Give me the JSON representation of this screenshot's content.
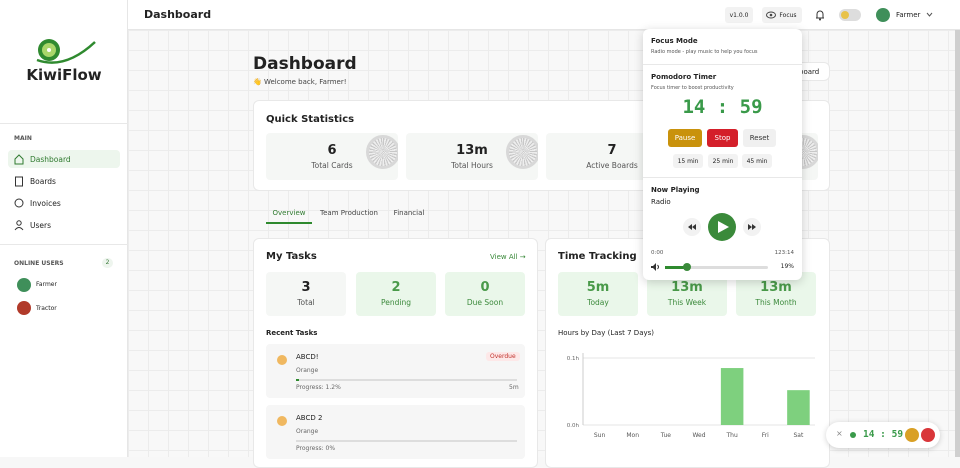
{
  "sidebar": {
    "brand": "KiwiFlow",
    "section_main": "MAIN",
    "nav": [
      "Dashboard",
      "Boards",
      "Invoices",
      "Users"
    ],
    "online_title": "ONLINE USERS",
    "online_count": "2",
    "online_users": [
      "Farmer",
      "Tractor"
    ]
  },
  "topbar": {
    "title": "Dashboard",
    "version": "v1.0.0",
    "focus": "Focus",
    "user": "Farmer"
  },
  "header": {
    "title": "Dashboard",
    "welcome": "👋 Welcome back, Farmer!",
    "button": "board"
  },
  "quick_stats": {
    "title": "Quick Statistics",
    "items": [
      {
        "value": "6",
        "label": "Total Cards"
      },
      {
        "value": "13m",
        "label": "Total Hours"
      },
      {
        "value": "7",
        "label": "Active Boards"
      }
    ]
  },
  "tabs": [
    "Overview",
    "Team Production",
    "Financial"
  ],
  "my_tasks": {
    "title": "My Tasks",
    "view_all": "View All →",
    "stats": [
      {
        "value": "3",
        "label": "Total"
      },
      {
        "value": "2",
        "label": "Pending"
      },
      {
        "value": "0",
        "label": "Due Soon"
      }
    ],
    "recent_title": "Recent Tasks",
    "tasks": [
      {
        "name": "ABCD!",
        "board": "Orange",
        "badge": "Overdue",
        "progress": "Progress: 1.2%",
        "time": "5m"
      },
      {
        "name": "ABCD 2",
        "board": "Orange",
        "progress": "Progress: 0%"
      }
    ]
  },
  "time_tracking": {
    "title": "Time Tracking",
    "stats": [
      {
        "value": "5m",
        "label": "Today"
      },
      {
        "value": "13m",
        "label": "This Week"
      },
      {
        "value": "13m",
        "label": "This Month"
      }
    ],
    "chart_title": "Hours by Day (Last 7 Days)",
    "chart": {
      "type": "bar",
      "categories": [
        "Sun",
        "Mon",
        "Tue",
        "Wed",
        "Thu",
        "Fri",
        "Sat"
      ],
      "values": [
        0,
        0,
        0,
        0,
        0.085,
        0,
        0.052
      ],
      "color": "#7ed07e",
      "ylim": [
        0,
        0.1
      ],
      "yticks": [
        {
          "value": 0,
          "label": "0.0h"
        },
        {
          "value": 0.1,
          "label": "0.1h"
        }
      ],
      "grid": true
    }
  },
  "focus_panel": {
    "title": "Focus Mode",
    "subtitle": "Radio mode - play music to help you focus",
    "pomodoro_title": "Pomodoro Timer",
    "pomodoro_subtitle": "Focus timer to boost productivity",
    "timer": "14 : 59",
    "buttons": [
      "Pause",
      "Stop",
      "Reset"
    ],
    "presets": [
      "15 min",
      "25 min",
      "45 min"
    ],
    "now_playing": "Now Playing",
    "station": "Radio",
    "time_start": "0:00",
    "time_end": "123:14",
    "volume": "19%"
  },
  "mini_timer": {
    "time": "14 : 59"
  }
}
